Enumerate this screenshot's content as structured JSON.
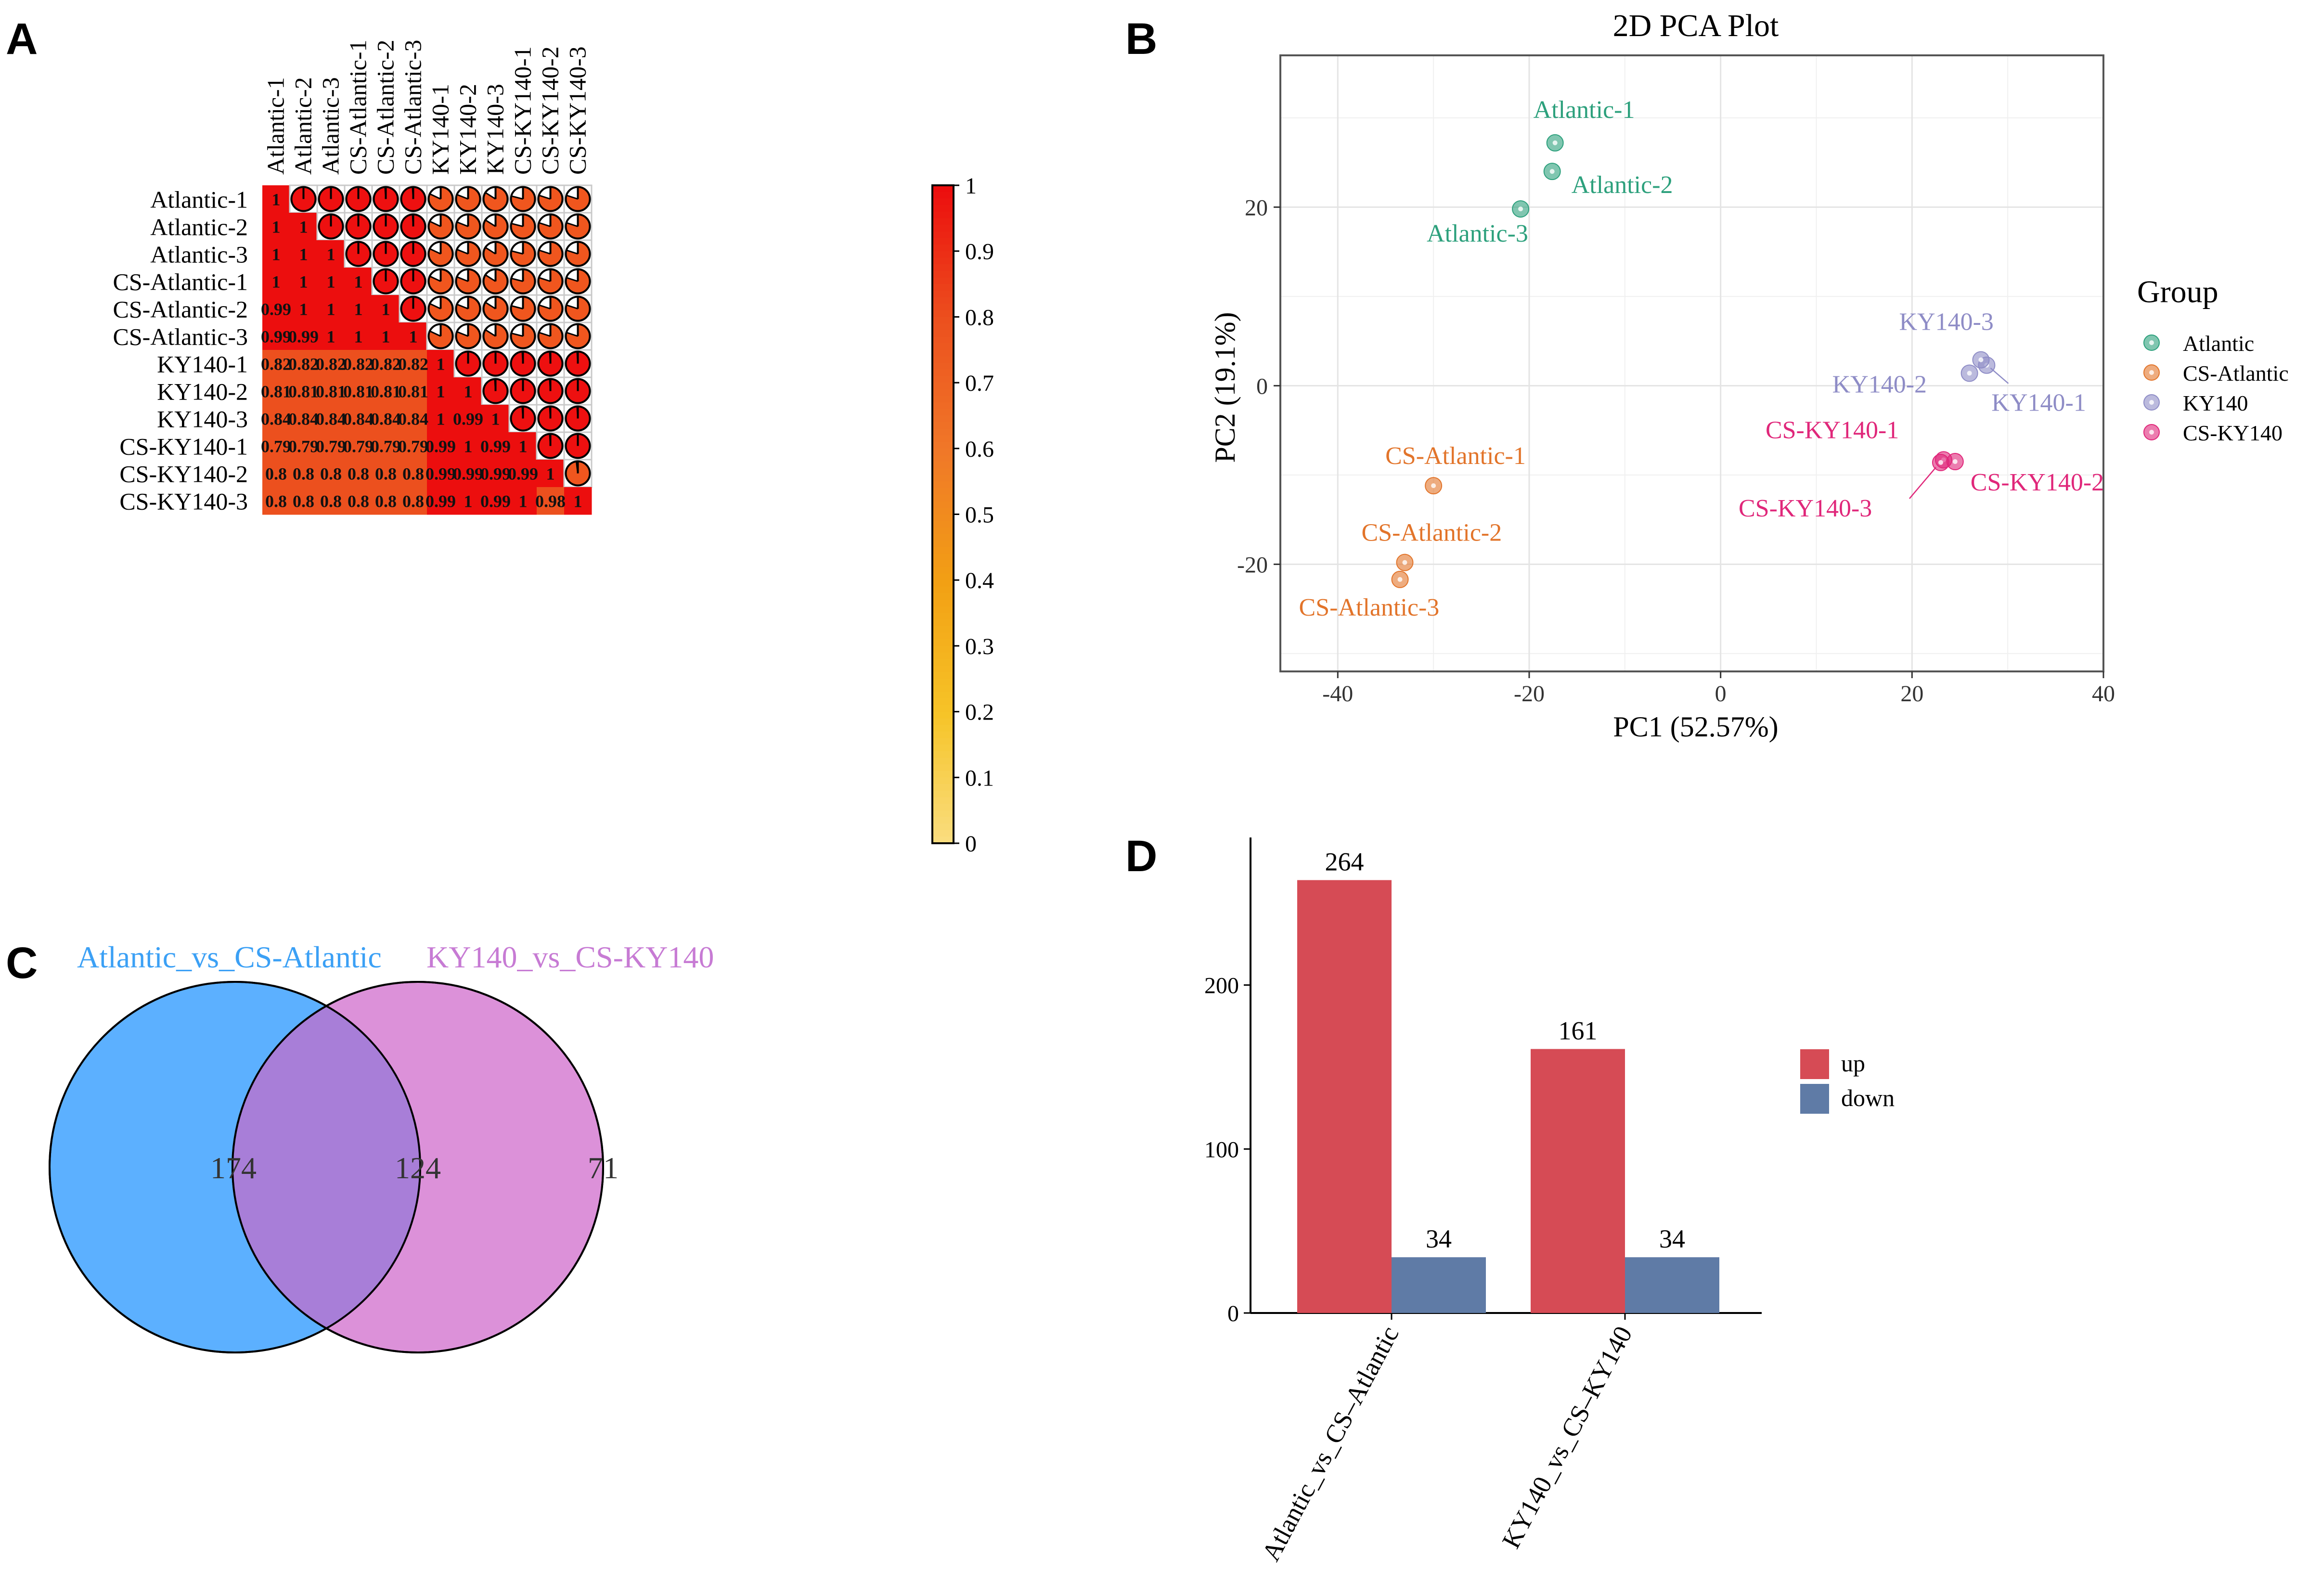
{
  "panels": [
    {
      "letter": "A"
    },
    {
      "letter": "B"
    },
    {
      "letter": "C"
    },
    {
      "letter": "D"
    }
  ],
  "chart_data": [
    {
      "type": "heatmap",
      "title": "",
      "samples": [
        "Atlantic-1",
        "Atlantic-2",
        "Atlantic-3",
        "CS-Atlantic-1",
        "CS-Atlantic-2",
        "CS-Atlantic-3",
        "KY140-1",
        "KY140-2",
        "KY140-3",
        "CS-KY140-1",
        "CS-KY140-2",
        "CS-KY140-3"
      ],
      "matrix": [
        [
          1,
          1,
          1,
          1,
          0.99,
          0.99,
          0.82,
          0.81,
          0.84,
          0.79,
          0.8,
          0.8
        ],
        [
          1,
          1,
          1,
          1,
          1,
          0.99,
          0.82,
          0.81,
          0.84,
          0.79,
          0.8,
          0.8
        ],
        [
          1,
          1,
          1,
          1,
          1,
          1,
          0.82,
          0.81,
          0.84,
          0.79,
          0.8,
          0.8
        ],
        [
          1,
          1,
          1,
          1,
          1,
          1,
          0.82,
          0.81,
          0.84,
          0.79,
          0.8,
          0.8
        ],
        [
          0.99,
          1,
          1,
          1,
          1,
          1,
          0.82,
          0.81,
          0.84,
          0.79,
          0.8,
          0.8
        ],
        [
          0.99,
          0.99,
          1,
          1,
          1,
          1,
          0.82,
          0.81,
          0.84,
          0.79,
          0.8,
          0.8
        ],
        [
          0.82,
          0.82,
          0.82,
          0.82,
          0.82,
          0.82,
          1,
          1,
          1,
          0.99,
          0.99,
          0.99
        ],
        [
          0.81,
          0.81,
          0.81,
          0.81,
          0.81,
          0.81,
          1,
          1,
          0.99,
          1,
          0.99,
          1
        ],
        [
          0.84,
          0.84,
          0.84,
          0.84,
          0.84,
          0.84,
          1,
          0.99,
          1,
          0.99,
          0.99,
          0.99
        ],
        [
          0.79,
          0.79,
          0.79,
          0.79,
          0.79,
          0.79,
          0.99,
          1,
          0.99,
          1,
          0.99,
          1
        ],
        [
          0.8,
          0.8,
          0.8,
          0.8,
          0.8,
          0.8,
          0.99,
          0.99,
          0.99,
          0.99,
          1,
          0.98
        ],
        [
          0.8,
          0.8,
          0.8,
          0.8,
          0.8,
          0.8,
          0.99,
          1,
          0.99,
          1,
          0.98,
          1
        ]
      ],
      "lower": "numbers",
      "upper": "pie",
      "colorbar": {
        "ticks": [
          "0",
          "0.1",
          "0.2",
          "0.3",
          "0.4",
          "0.5",
          "0.6",
          "0.7",
          "0.8",
          "0.9",
          "1"
        ],
        "range": [
          0,
          1
        ]
      }
    },
    {
      "type": "scatter",
      "title": "2D PCA Plot",
      "xlabel": "PC1 (52.57%)",
      "ylabel": "PC2 (19.1%)",
      "xlim": [
        -46,
        40
      ],
      "ylim": [
        -32,
        37
      ],
      "xticks": [
        -40,
        -20,
        0,
        20,
        40
      ],
      "yticks": [
        -20,
        0,
        20
      ],
      "grid": true,
      "legend_title": "Group",
      "legend_position": "right",
      "series": [
        {
          "name": "Atlantic",
          "color": "#2ca07c",
          "points": [
            {
              "label": "Atlantic-1",
              "x": -17.3,
              "y": 27.2
            },
            {
              "label": "Atlantic-2",
              "x": -17.6,
              "y": 24.0
            },
            {
              "label": "Atlantic-3",
              "x": -20.9,
              "y": 19.8
            }
          ]
        },
        {
          "name": "CS-Atlantic",
          "color": "#e2742a",
          "points": [
            {
              "label": "CS-Atlantic-1",
              "x": -30.0,
              "y": -11.2
            },
            {
              "label": "CS-Atlantic-2",
              "x": -33.0,
              "y": -19.8
            },
            {
              "label": "CS-Atlantic-3",
              "x": -33.5,
              "y": -21.7
            }
          ]
        },
        {
          "name": "KY140",
          "color": "#8e8cc6",
          "points": [
            {
              "label": "KY140-1",
              "x": 27.8,
              "y": 2.3
            },
            {
              "label": "KY140-2",
              "x": 26.0,
              "y": 1.4
            },
            {
              "label": "KY140-3",
              "x": 27.2,
              "y": 2.9
            }
          ]
        },
        {
          "name": "CS-KY140",
          "color": "#e0277a",
          "points": [
            {
              "label": "CS-KY140-1",
              "x": 23.3,
              "y": -8.3
            },
            {
              "label": "CS-KY140-2",
              "x": 24.5,
              "y": -8.5
            },
            {
              "label": "CS-KY140-3",
              "x": 23.0,
              "y": -8.6
            }
          ]
        }
      ]
    },
    {
      "type": "venn",
      "sets": [
        {
          "name": "Atlantic_vs_CS-Atlantic",
          "color": "#3ba0f5",
          "fill": "#5cb0ff",
          "only": 174
        },
        {
          "name": "KY140_vs_CS-KY140",
          "color": "#c77bd4",
          "fill": "#dc91d9",
          "only": 71
        }
      ],
      "overlap": 124,
      "overlap_fill": "#a87ed8"
    },
    {
      "type": "bar",
      "categories": [
        "Atlantic_vs_CS–Atlantic",
        "KY140_vs_CS–KY140"
      ],
      "series": [
        {
          "name": "up",
          "color": "#d64b55",
          "values": [
            264,
            161
          ]
        },
        {
          "name": "down",
          "color": "#5f7ba6",
          "values": [
            34,
            34
          ]
        }
      ],
      "ylim": [
        0,
        290
      ],
      "yticks": [
        0,
        100,
        200
      ],
      "xlabel": "",
      "ylabel": "",
      "legend_position": "right"
    }
  ]
}
